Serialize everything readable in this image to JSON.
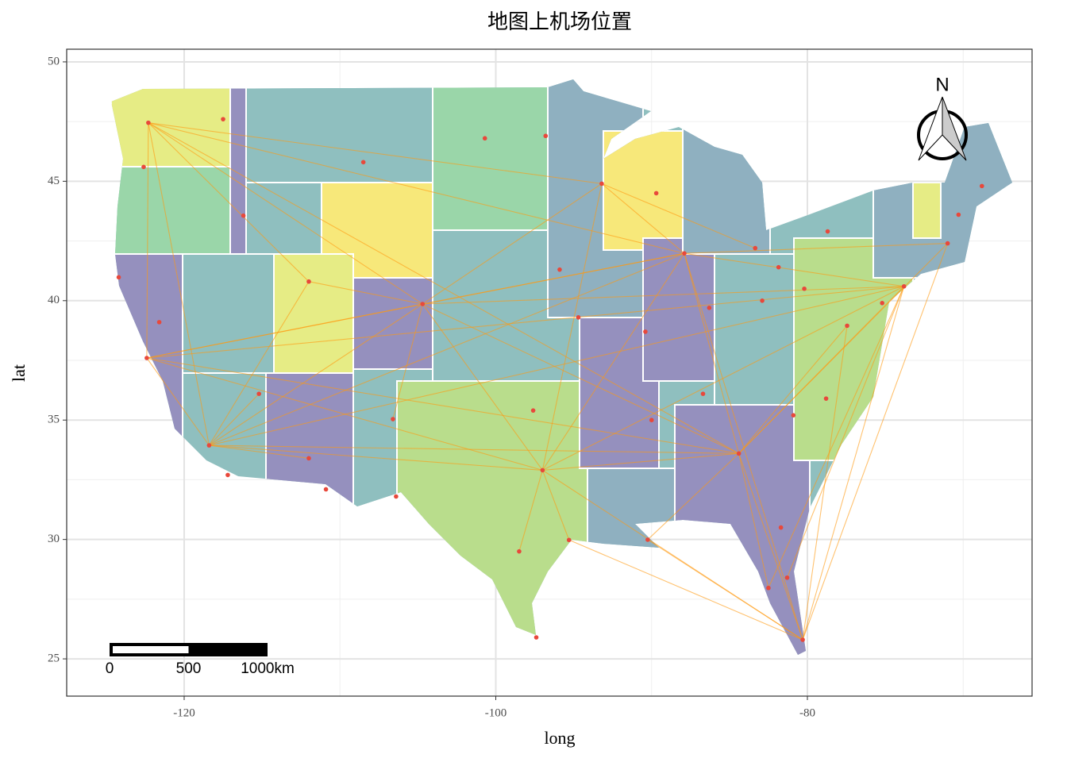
{
  "chart_data": {
    "type": "map",
    "title": "地图上机场位置",
    "x_label": "long",
    "y_label": "lat",
    "xlim": [
      -127.54,
      -65.58
    ],
    "ylim": [
      23.44,
      50.53
    ],
    "xticks": [
      -120,
      -100,
      -80
    ],
    "yticks": [
      25,
      30,
      35,
      40,
      45,
      50
    ],
    "minor_xticks": [
      -110,
      -90,
      -70
    ],
    "minor_yticks": [
      27.5,
      32.5,
      37.5,
      42.5,
      47.5
    ],
    "grid": true,
    "north_arrow": "N",
    "scale_bar": {
      "ticks": [
        0,
        500,
        {
          "value": 1000,
          "label": "1000km"
        }
      ]
    },
    "airports": {
      "color": "#e8483b",
      "x": [
        -84.4,
        -87.9,
        -97,
        -104.7,
        -118.4,
        -122.4,
        -122.3,
        -73.8,
        -80.3,
        -93.2,
        -112,
        -112,
        -115.2,
        -95.3,
        -83.35,
        -71,
        -80.9,
        -81.3,
        -122.6,
        -94.7,
        -90.4,
        -77.45,
        -75.2,
        -82.5,
        -117.2,
        -106.6,
        -86.7,
        -90.25,
        -90,
        -108.5,
        -96.8,
        -68.8,
        -116.2,
        -117.5,
        -106.4,
        -98.5,
        -97.4,
        -95.9,
        -97.6,
        -78.8,
        -80.2,
        -81.85,
        -86.3,
        -82.9,
        -78.7,
        -81.7,
        -124.2,
        -121.6,
        -110.9,
        -100.7,
        -89.7,
        -70.3
      ],
      "y": [
        33.6,
        41.98,
        32.9,
        39.86,
        33.94,
        37.6,
        47.45,
        40.6,
        25.8,
        44.9,
        40.8,
        33.4,
        36.1,
        29.98,
        42.2,
        42.4,
        35.2,
        28.4,
        45.6,
        39.3,
        38.7,
        38.95,
        39.9,
        27.97,
        32.7,
        35.04,
        36.1,
        29.99,
        35,
        45.8,
        46.9,
        44.8,
        43.56,
        47.6,
        31.8,
        29.5,
        25.9,
        41.3,
        35.4,
        35.9,
        40.5,
        41.4,
        39.7,
        40,
        42.9,
        30.5,
        40.98,
        39.1,
        32.1,
        46.8,
        44.5,
        43.6
      ]
    },
    "routes": {
      "color": "#ff9a10",
      "x": [
        -84.4,
        -122.3,
        null,
        -84.4,
        -122.4,
        null,
        -84.4,
        -118.4,
        null,
        -84.4,
        -104.7,
        null,
        -84.4,
        -97,
        null,
        -84.4,
        -87.9,
        null,
        -84.4,
        -73.8,
        null,
        -84.4,
        -80.3,
        null,
        -84.4,
        -71,
        null,
        -84.4,
        -82.5,
        null,
        -84.4,
        -90.25,
        null,
        -84.4,
        -77.45,
        null,
        -87.9,
        -122.3,
        null,
        -87.9,
        -122.4,
        null,
        -87.9,
        -118.4,
        null,
        -87.9,
        -104.7,
        null,
        -87.9,
        -97,
        null,
        -87.9,
        -73.8,
        null,
        -87.9,
        -80.3,
        null,
        -87.9,
        -93.2,
        null,
        -87.9,
        -71,
        null,
        -73.8,
        -118.4,
        null,
        -73.8,
        -122.4,
        null,
        -73.8,
        -80.3,
        null,
        -73.8,
        -97,
        null,
        -73.8,
        -104.7,
        null,
        -73.8,
        -82.5,
        null,
        -73.8,
        -81.3,
        null,
        -97,
        -118.4,
        null,
        -97,
        -122.4,
        null,
        -97,
        -104.7,
        null,
        -97,
        -80.3,
        null,
        -97,
        -95.3,
        null,
        -97,
        -98.5,
        null,
        -97,
        -93.2,
        null,
        -104.7,
        -122.3,
        null,
        -104.7,
        -122.4,
        null,
        -104.7,
        -118.4,
        null,
        -104.7,
        -112,
        null,
        -104.7,
        -93.2,
        null,
        -104.7,
        -106.6,
        null,
        -118.4,
        -122.3,
        null,
        -118.4,
        -122.4,
        null,
        -118.4,
        -112,
        null,
        -118.4,
        -115.2,
        null,
        -118.4,
        -112,
        null,
        -80.3,
        -71,
        null,
        -80.3,
        -77.45,
        null,
        -80.3,
        -90.25,
        null,
        -80.3,
        -95.3,
        null,
        -93.2,
        -122.3,
        null,
        -93.2,
        -83.35,
        null,
        -122.3,
        -112,
        null,
        -122.3,
        -122.4
      ],
      "y": [
        33.6,
        47.45,
        null,
        33.6,
        37.6,
        null,
        33.6,
        33.94,
        null,
        33.6,
        39.86,
        null,
        33.6,
        32.9,
        null,
        33.6,
        41.98,
        null,
        33.6,
        40.6,
        null,
        33.6,
        25.8,
        null,
        33.6,
        42.4,
        null,
        33.6,
        27.97,
        null,
        33.6,
        29.99,
        null,
        33.6,
        38.95,
        null,
        41.98,
        47.45,
        null,
        41.98,
        37.6,
        null,
        41.98,
        33.94,
        null,
        41.98,
        39.86,
        null,
        41.98,
        32.9,
        null,
        41.98,
        40.6,
        null,
        41.98,
        25.8,
        null,
        41.98,
        44.9,
        null,
        41.98,
        42.4,
        null,
        40.6,
        33.94,
        null,
        40.6,
        37.6,
        null,
        40.6,
        25.8,
        null,
        40.6,
        32.9,
        null,
        40.6,
        39.86,
        null,
        40.6,
        27.97,
        null,
        40.6,
        28.4,
        null,
        32.9,
        33.94,
        null,
        32.9,
        37.6,
        null,
        32.9,
        39.86,
        null,
        32.9,
        25.8,
        null,
        32.9,
        29.98,
        null,
        32.9,
        29.5,
        null,
        32.9,
        44.9,
        null,
        39.86,
        47.45,
        null,
        39.86,
        37.6,
        null,
        39.86,
        33.94,
        null,
        39.86,
        40.8,
        null,
        39.86,
        44.9,
        null,
        39.86,
        35.04,
        null,
        33.94,
        47.45,
        null,
        33.94,
        37.6,
        null,
        33.94,
        40.8,
        null,
        33.94,
        36.1,
        null,
        33.94,
        33.4,
        null,
        25.8,
        42.4,
        null,
        25.8,
        38.95,
        null,
        25.8,
        29.99,
        null,
        25.8,
        29.98,
        null,
        44.9,
        47.45,
        null,
        44.9,
        42.2,
        null,
        47.45,
        40.8,
        null,
        47.45,
        37.6
      ]
    }
  }
}
